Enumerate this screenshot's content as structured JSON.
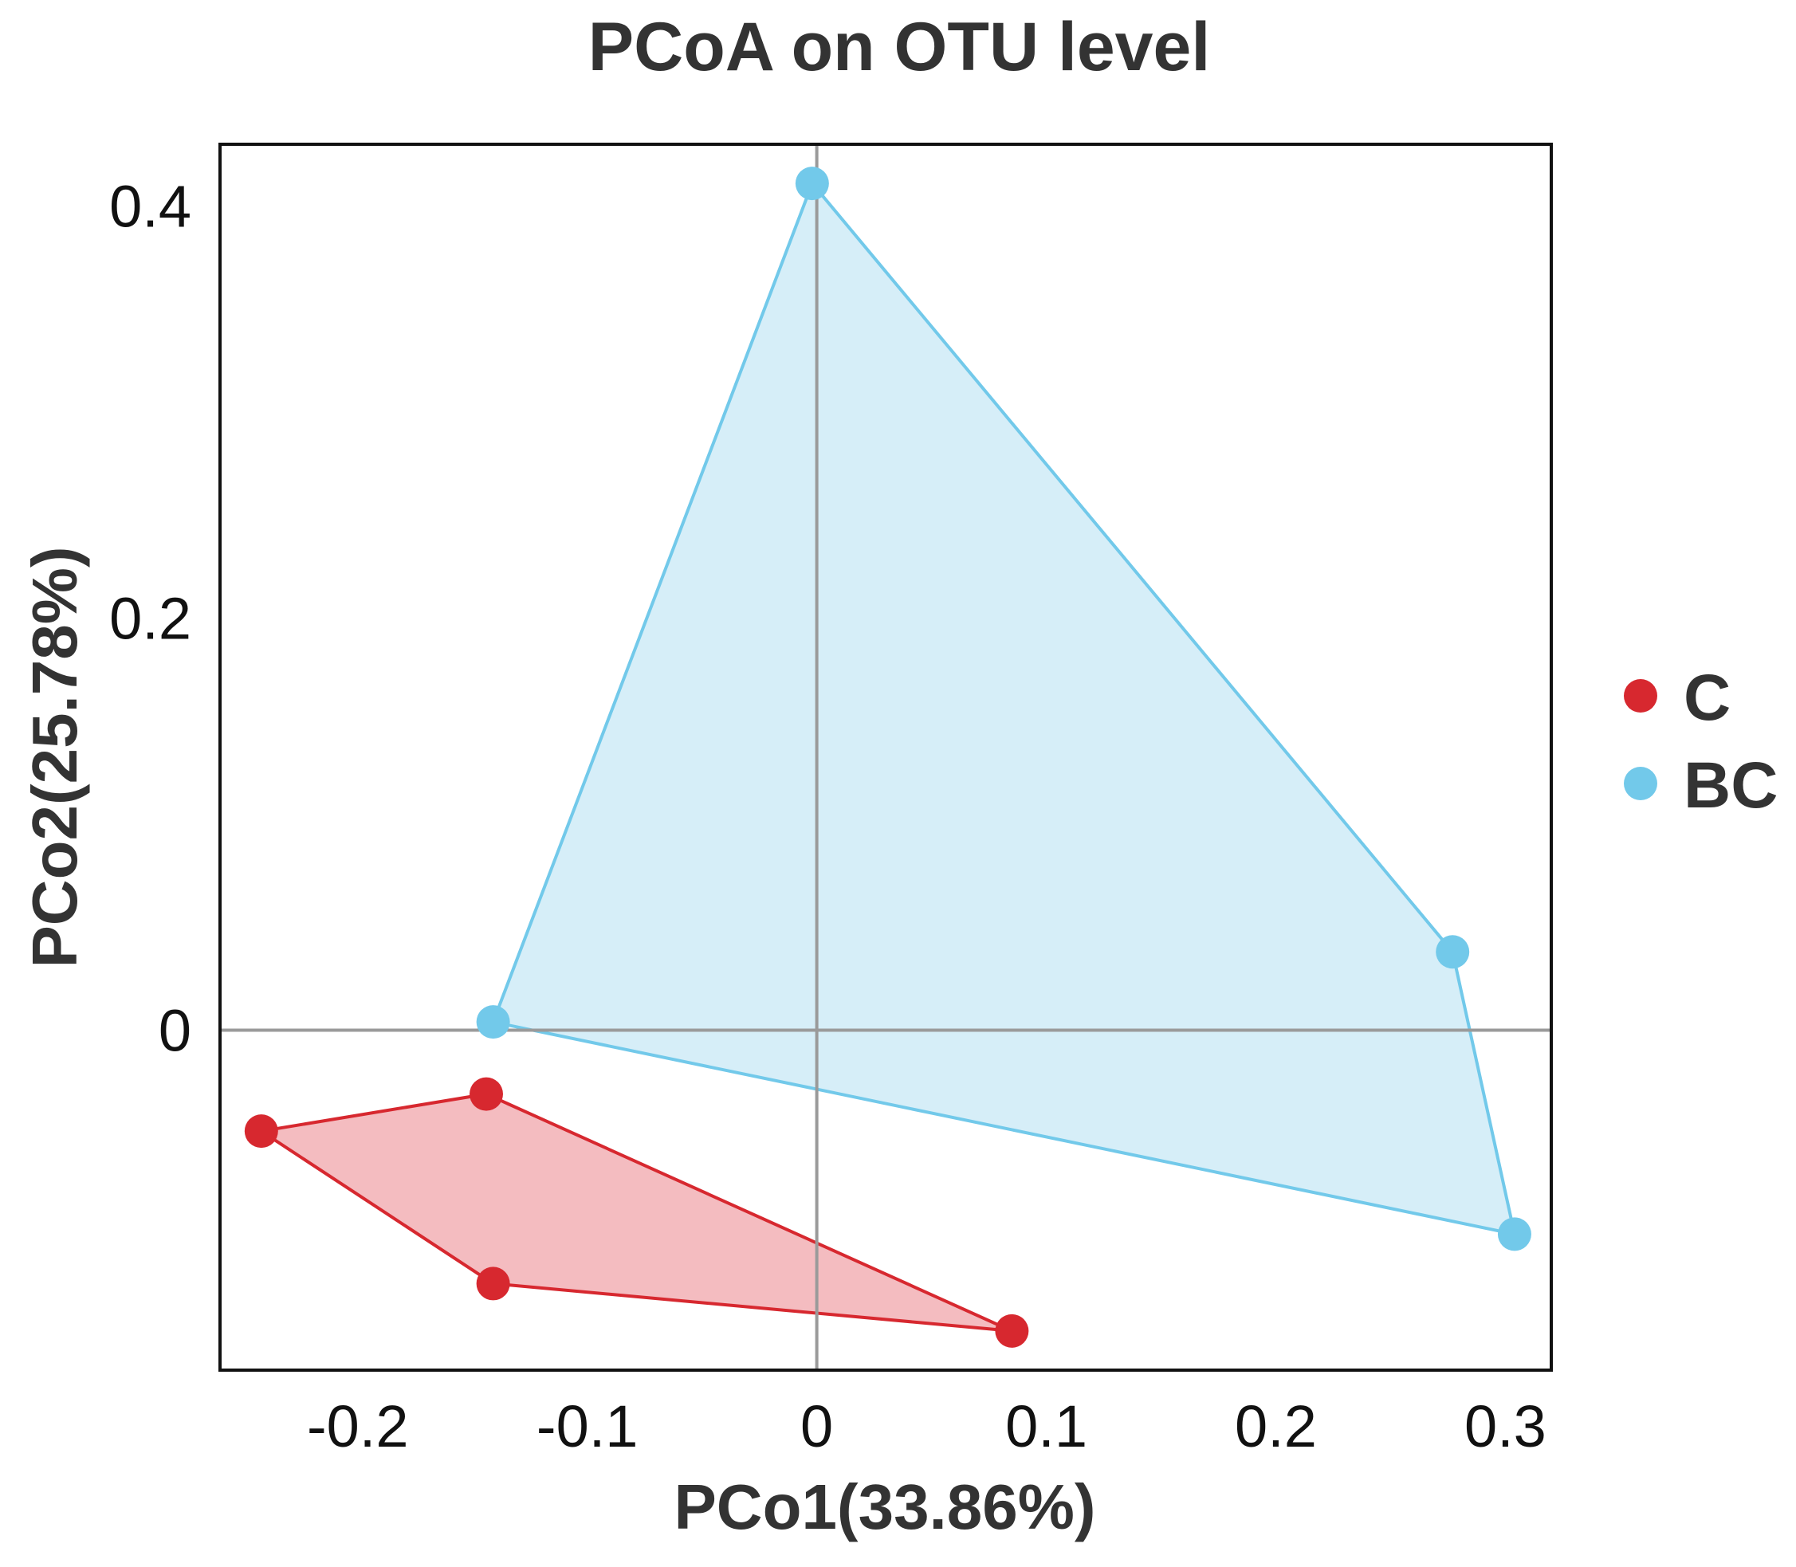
{
  "chart_data": {
    "type": "scatter",
    "title": "PCoA on OTU level",
    "xlabel": "PCo1(33.86%)",
    "ylabel": "PCo2(25.78%)",
    "xlim": [
      -0.26,
      0.32
    ],
    "ylim": [
      -0.165,
      0.43
    ],
    "x_ticks": [
      {
        "value": -0.2,
        "label": "-0.2"
      },
      {
        "value": -0.1,
        "label": "-0.1"
      },
      {
        "value": 0,
        "label": "0"
      },
      {
        "value": 0.1,
        "label": "0.1"
      },
      {
        "value": 0.2,
        "label": "0.2"
      },
      {
        "value": 0.3,
        "label": "0.3"
      }
    ],
    "y_ticks": [
      {
        "value": 0,
        "label": "0"
      },
      {
        "value": 0.2,
        "label": "0.2"
      },
      {
        "value": 0.4,
        "label": "0.4"
      }
    ],
    "zero_lines": true,
    "grid": false,
    "legend_position": "right",
    "hull": true,
    "series": [
      {
        "name": "C",
        "color": "#d7282f",
        "fill": "#f4bcc0",
        "points": [
          {
            "x": -0.242,
            "y": -0.049
          },
          {
            "x": -0.144,
            "y": -0.031
          },
          {
            "x": -0.141,
            "y": -0.123
          },
          {
            "x": 0.085,
            "y": -0.146
          }
        ],
        "hull_order": [
          0,
          1,
          3,
          2
        ]
      },
      {
        "name": "BC",
        "color": "#72c9ea",
        "fill": "#d6eef8",
        "points": [
          {
            "x": -0.141,
            "y": 0.004
          },
          {
            "x": -0.002,
            "y": 0.411
          },
          {
            "x": 0.277,
            "y": 0.038
          },
          {
            "x": 0.304,
            "y": -0.099
          }
        ],
        "hull_order": [
          0,
          1,
          2,
          3
        ]
      }
    ]
  }
}
